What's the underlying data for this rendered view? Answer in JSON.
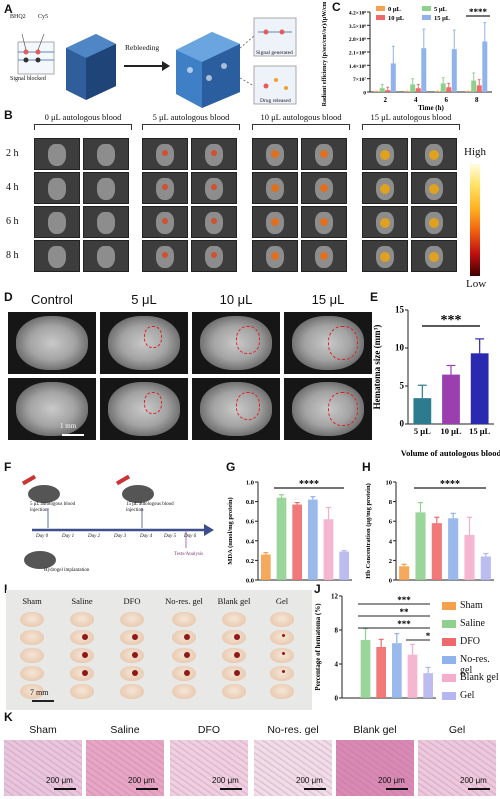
{
  "panels": {
    "A": "A",
    "B": "B",
    "C": "C",
    "D": "D",
    "E": "E",
    "F": "F",
    "G": "G",
    "H": "H",
    "I": "I",
    "J": "J",
    "K": "K"
  },
  "panelA": {
    "bhq2": "BHQ2",
    "cy5": "Cy5",
    "signal_blocked": "Signal blocked",
    "rebleeding": "Rebleeding",
    "signal_generated": "Signal generated",
    "drug_released": "Drug released"
  },
  "panelB": {
    "groups": [
      "0 μL autologous blood",
      "5 μL autologous blood",
      "10 μL autologous blood",
      "15 μL autologous blood"
    ],
    "times": [
      "2 h",
      "4 h",
      "6 h",
      "8 h"
    ],
    "scale_high": "High",
    "scale_low": "Low"
  },
  "panelD": {
    "groups": [
      "Control",
      "5 μL",
      "10 μL",
      "15 μL"
    ],
    "scalebar": "1 mm"
  },
  "panelI": {
    "groups": [
      "Sham",
      "Saline",
      "DFO",
      "No-res. gel",
      "Blank gel",
      "Gel"
    ],
    "scalebar": "7 mm"
  },
  "panelF": {
    "inj1": "5 μL autologous blood injection",
    "inj2": "15 μL autologous blood injection",
    "implant": "Hydrogel implantation",
    "days": [
      "Day 0",
      "Day 1",
      "Day 2",
      "Day 3",
      "Day 4",
      "Day 5",
      "Day 6"
    ],
    "tests": "Tests/Analysis"
  },
  "legendJ": [
    {
      "label": "Sham",
      "color": "#f5a04a"
    },
    {
      "label": "Saline",
      "color": "#8fd08f"
    },
    {
      "label": "DFO",
      "color": "#ee6a6a"
    },
    {
      "label": "No-res. gel",
      "color": "#8fb3ea"
    },
    {
      "label": "Blank gel",
      "color": "#f4aecb"
    },
    {
      "label": "Gel",
      "color": "#b5b5ef"
    }
  ],
  "panelK": {
    "groups": [
      "Sham",
      "Saline",
      "DFO",
      "No-res. gel",
      "Blank gel",
      "Gel"
    ],
    "scalebar": "200 μm"
  },
  "chart_data": [
    {
      "id": "C",
      "type": "bar",
      "ylabel": "Radiant efficiency (p/sec/cm²/sr)/(μW/cm²)",
      "xlabel": "Time (h)",
      "categories": [
        "2",
        "4",
        "6",
        "8"
      ],
      "yticks": [
        "0",
        "7×10⁷",
        "1.4×10⁸",
        "2.1×10⁸",
        "2.8×10⁸",
        "3.5×10⁸",
        "4.2×10⁸"
      ],
      "ylim": [
        0,
        420000000
      ],
      "series": [
        {
          "name": "0 μL",
          "color": "#f5a04a",
          "values": [
            3000000,
            3000000,
            3000000,
            3000000
          ],
          "err": [
            1000000,
            1000000,
            1000000,
            1000000
          ]
        },
        {
          "name": "5 μL",
          "color": "#8fd08f",
          "values": [
            20000000,
            40000000,
            45000000,
            60000000
          ],
          "err": [
            20000000,
            30000000,
            30000000,
            40000000
          ]
        },
        {
          "name": "10 μL",
          "color": "#ee6a6a",
          "values": [
            10000000,
            20000000,
            25000000,
            35000000
          ],
          "err": [
            15000000,
            20000000,
            20000000,
            30000000
          ]
        },
        {
          "name": "15 μL",
          "color": "#8fb3ea",
          "values": [
            150000000,
            230000000,
            225000000,
            265000000
          ],
          "err": [
            90000000,
            100000000,
            100000000,
            100000000
          ]
        }
      ],
      "sig": "****"
    },
    {
      "id": "E",
      "type": "bar",
      "ylabel": "Hematoma size (mm³)",
      "xlabel": "Volume of autologous blood",
      "categories": [
        "5 μL",
        "10 μL",
        "15 μL"
      ],
      "yticks": [
        "0",
        "5",
        "10",
        "15"
      ],
      "ylim": [
        0,
        15
      ],
      "colors": [
        "#2a7c8e",
        "#9b3fb0",
        "#2a2ab0"
      ],
      "values": [
        3.4,
        6.5,
        9.3
      ],
      "err": [
        1.7,
        1.2,
        1.9
      ],
      "sig": "***"
    },
    {
      "id": "G",
      "type": "bar",
      "ylabel": "MDA (nmol/mg protein)",
      "categories": [
        "Sham",
        "Saline",
        "DFO",
        "No-res. gel",
        "Blank gel",
        "Gel"
      ],
      "yticks": [
        "0.0",
        "0.2",
        "0.4",
        "0.6",
        "0.8",
        "1.0"
      ],
      "ylim": [
        0,
        1.0
      ],
      "colors": [
        "#f5a04a",
        "#8fd08f",
        "#ee6a6a",
        "#8fb3ea",
        "#f4aecb",
        "#b5b5ef"
      ],
      "values": [
        0.26,
        0.84,
        0.77,
        0.82,
        0.62,
        0.29
      ],
      "err": [
        0.02,
        0.03,
        0.02,
        0.03,
        0.12,
        0.01
      ],
      "sig": "****"
    },
    {
      "id": "H",
      "type": "bar",
      "ylabel": "Hb Concentration (μg/mg protein)",
      "categories": [
        "Sham",
        "Saline",
        "DFO",
        "No-res. gel",
        "Blank gel",
        "Gel"
      ],
      "yticks": [
        "0",
        "2",
        "4",
        "6",
        "8",
        "10"
      ],
      "ylim": [
        0,
        10
      ],
      "colors": [
        "#f5a04a",
        "#8fd08f",
        "#ee6a6a",
        "#8fb3ea",
        "#f4aecb",
        "#b5b5ef"
      ],
      "values": [
        1.4,
        6.9,
        5.8,
        6.3,
        4.6,
        2.4
      ],
      "err": [
        0.2,
        1.0,
        0.6,
        0.5,
        1.8,
        0.3
      ],
      "sig": "****"
    },
    {
      "id": "J",
      "type": "bar",
      "ylabel": "Percentage of hematoma (%)",
      "categories": [
        "Sham",
        "Saline",
        "DFO",
        "No-res. gel",
        "Blank gel",
        "Gel"
      ],
      "yticks": [
        "0",
        "4",
        "8",
        "12"
      ],
      "ylim": [
        0,
        16
      ],
      "colors": [
        "#f5a04a",
        "#8fd08f",
        "#ee6a6a",
        "#8fb3ea",
        "#f4aecb",
        "#b5b5ef"
      ],
      "values": [
        0,
        9.1,
        8.0,
        8.6,
        6.8,
        3.9
      ],
      "err": [
        0,
        1.8,
        1.2,
        1.5,
        1.6,
        0.9
      ],
      "sigs": [
        "***",
        "**",
        "***",
        "*"
      ]
    }
  ]
}
